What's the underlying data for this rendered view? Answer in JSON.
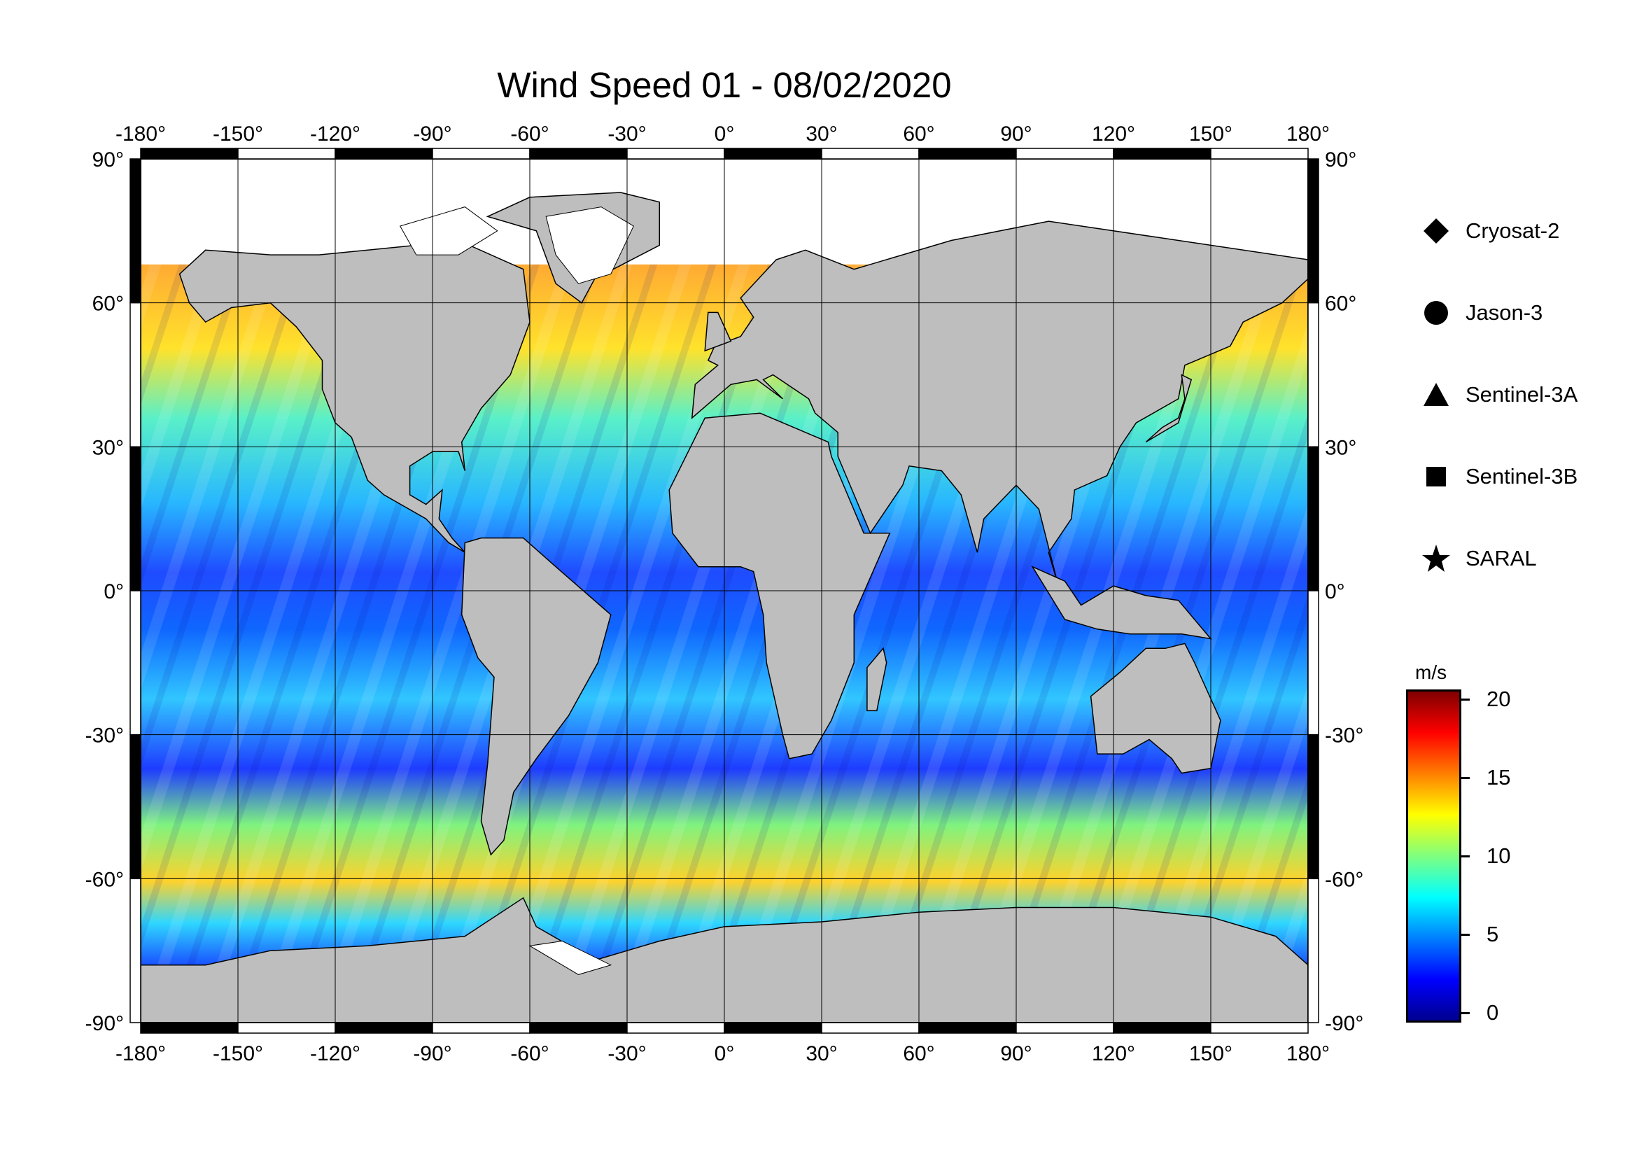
{
  "title": "Wind Speed 01 - 08/02/2020",
  "map": {
    "projection": "equirectangular",
    "lon_range": [
      -180,
      180
    ],
    "lat_range": [
      -90,
      90
    ],
    "lon_ticks": [
      "-180°",
      "-150°",
      "-120°",
      "-90°",
      "-60°",
      "-30°",
      "0°",
      "30°",
      "60°",
      "90°",
      "120°",
      "150°",
      "180°"
    ],
    "lat_ticks": [
      "90°",
      "60°",
      "30°",
      "0°",
      "-30°",
      "-60°",
      "-90°"
    ],
    "land_color": "#bebebe",
    "ice_color": "#ffffff",
    "grid_spacing_deg": 30
  },
  "legend": {
    "items": [
      {
        "marker": "diamond",
        "label": "Cryosat-2"
      },
      {
        "marker": "circle",
        "label": "Jason-3"
      },
      {
        "marker": "triangle",
        "label": "Sentinel-3A"
      },
      {
        "marker": "square",
        "label": "Sentinel-3B"
      },
      {
        "marker": "star",
        "label": "SARAL"
      }
    ]
  },
  "colorbar": {
    "unit": "m/s",
    "min": 0,
    "max": 20,
    "ticks": [
      "20",
      "15",
      "10",
      "5",
      "0"
    ],
    "colors": [
      "#00008f",
      "#0000ff",
      "#007fff",
      "#00ffff",
      "#7fff7f",
      "#ffff00",
      "#ff7f00",
      "#ff0000",
      "#7f0000"
    ]
  }
}
